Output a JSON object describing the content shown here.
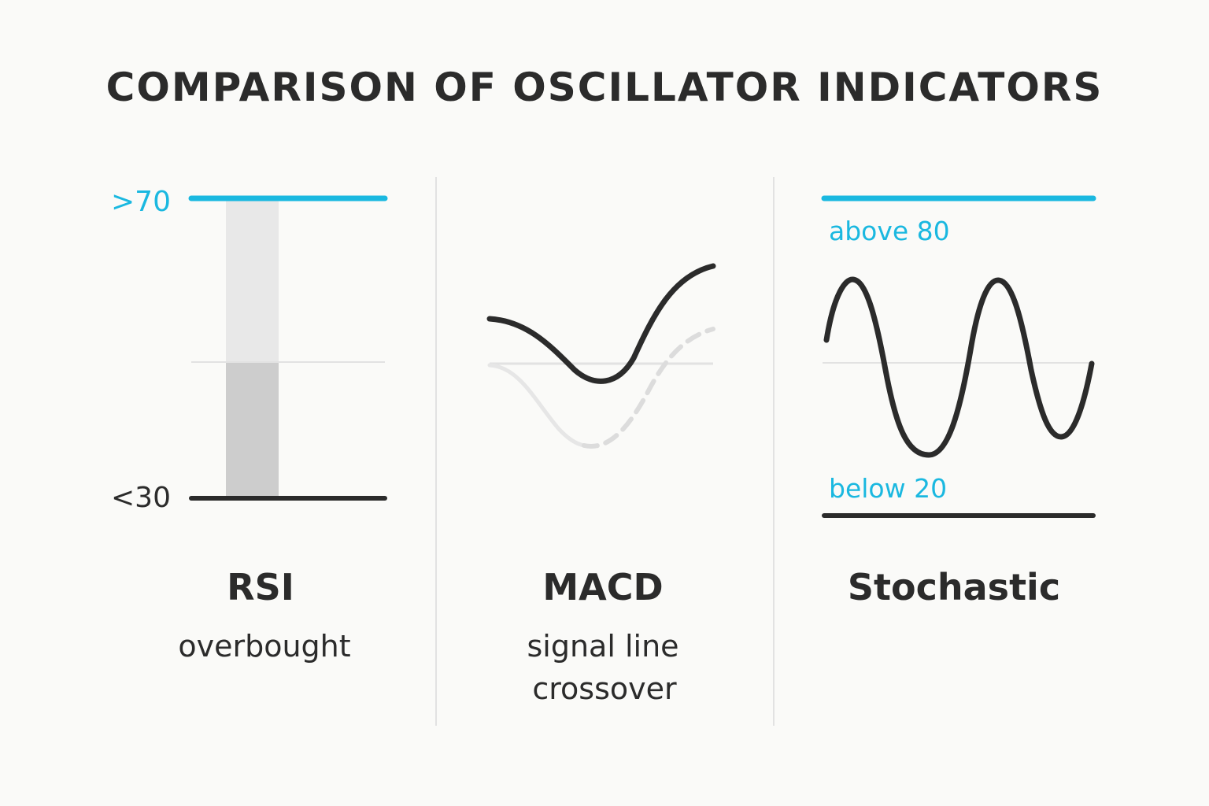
{
  "title": "COMPARISON OF OSCILLATOR INDICATORS",
  "colors": {
    "accent": "#1ab8e0",
    "dark": "#2b2b2b",
    "light_gray": "#e5e5e5",
    "mid_gray": "#cfcfcf",
    "divider": "#e2e2e2",
    "background": "#fafaf8"
  },
  "panels": {
    "rsi": {
      "title": "RSI",
      "subtitle": "overbought",
      "upper_label": ">70",
      "lower_label": "<30"
    },
    "macd": {
      "title": "MACD",
      "subtitle_line1": "signal line",
      "subtitle_line2": "crossover"
    },
    "stochastic": {
      "title": "Stochastic",
      "upper_label": "above 80",
      "lower_label": "below 20"
    }
  }
}
